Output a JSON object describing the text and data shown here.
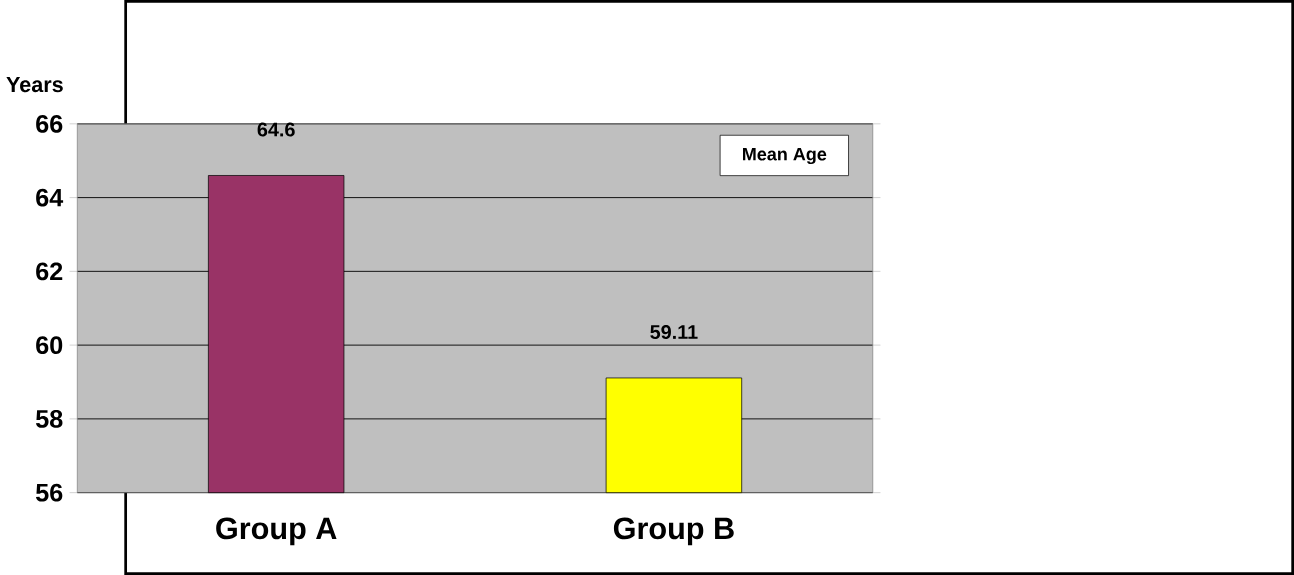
{
  "chart_data": {
    "type": "bar",
    "ylabel": "Years",
    "categories": [
      "Group A",
      "Group B"
    ],
    "series": [
      {
        "name": "Mean Age",
        "values": [
          64.6,
          59.11
        ],
        "colors": [
          "#993366",
          "#ffff00"
        ]
      }
    ],
    "ylim": [
      56,
      66
    ],
    "yticks": [
      56,
      58,
      60,
      62,
      64,
      66
    ],
    "grid": "y",
    "legend": "top right",
    "data_labels": true
  }
}
